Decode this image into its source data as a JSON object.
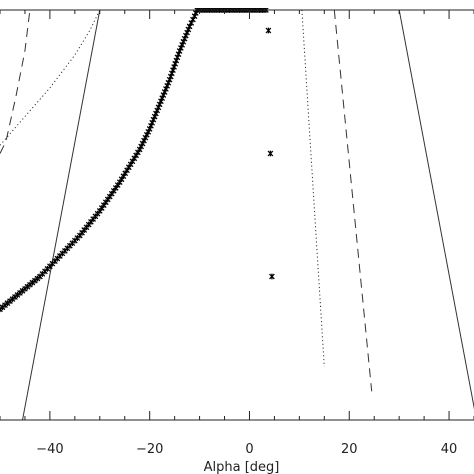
{
  "chart_data": {
    "type": "line",
    "xlabel": "Alpha [deg]",
    "ylabel": "",
    "xlim": [
      -50,
      45
    ],
    "ylim": [
      0,
      10
    ],
    "x_ticks": [
      -40,
      -20,
      0,
      20,
      40
    ],
    "x_tick_labels": [
      "−40",
      "−20",
      "0",
      "20",
      "40"
    ],
    "grid": false,
    "series": [
      {
        "style": "solid",
        "x": [
          -45.5,
          -30,
          30,
          45.5
        ],
        "y": [
          0,
          10,
          10,
          0
        ]
      },
      {
        "style": "dashed-left",
        "x": [
          -50,
          -48.8,
          -46.8,
          -45,
          -44,
          -37,
          -32
        ],
        "y": [
          6.5,
          6.8,
          7.9,
          9.0,
          10,
          10,
          10
        ]
      },
      {
        "style": "dotted-left",
        "x": [
          -50,
          -45,
          -40,
          -35,
          -32,
          -30
        ],
        "y": [
          6.7,
          7.4,
          8.1,
          8.9,
          9.5,
          10
        ]
      },
      {
        "style": "dotted-right",
        "x": [
          10.5,
          15
        ],
        "y": [
          10,
          1.3
        ]
      },
      {
        "style": "dashed-right",
        "x": [
          17,
          24.5
        ],
        "y": [
          10,
          0.7
        ]
      },
      {
        "style": "markers",
        "x": [
          -50,
          -46,
          -42,
          -38,
          -34,
          -30,
          -26,
          -22,
          -20,
          -18,
          -16,
          -14,
          -12,
          -11,
          -10.5,
          -10,
          -8,
          -6,
          -4,
          -2,
          0,
          2,
          3.3
        ],
        "y": [
          2.7,
          3.1,
          3.5,
          4.0,
          4.5,
          5.1,
          5.8,
          6.6,
          7.1,
          7.7,
          8.3,
          9.0,
          9.6,
          9.85,
          10,
          10,
          10,
          10,
          10,
          10,
          10,
          10,
          10
        ]
      },
      {
        "style": "isolated-markers",
        "x": [
          3.8,
          4.2,
          4.5
        ],
        "y": [
          9.5,
          6.5,
          3.5
        ]
      }
    ]
  }
}
